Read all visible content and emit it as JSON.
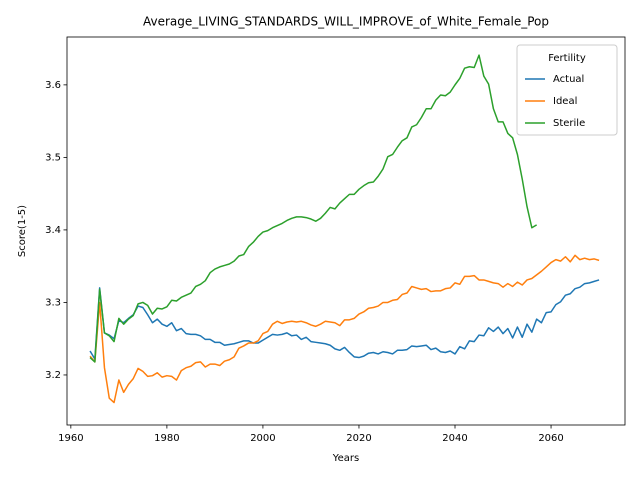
{
  "chart_data": {
    "type": "line",
    "title": "Average_LIVING_STANDARDS_WILL_IMPROVE_of_White_Female_Pop",
    "xlabel": "Years",
    "ylabel": "Score(1-5)",
    "legend_title": "Fertility",
    "legend_position": "upper right",
    "xlim": [
      1959.2,
      2075.4
    ],
    "xticks": [
      1960,
      1980,
      2000,
      2020,
      2040,
      2060
    ],
    "ylim": [
      3.131,
      3.666
    ],
    "yticks": [
      3.2,
      3.3,
      3.4,
      3.5,
      3.6
    ],
    "grid": false,
    "x": [
      1964,
      1965,
      1966,
      1967,
      1968,
      1969,
      1970,
      1971,
      1972,
      1973,
      1974,
      1975,
      1976,
      1977,
      1978,
      1979,
      1980,
      1981,
      1982,
      1983,
      1984,
      1985,
      1986,
      1987,
      1988,
      1989,
      1990,
      1991,
      1992,
      1993,
      1994,
      1995,
      1996,
      1997,
      1998,
      1999,
      2000,
      2001,
      2002,
      2003,
      2004,
      2005,
      2006,
      2007,
      2008,
      2009,
      2010,
      2011,
      2012,
      2013,
      2014,
      2015,
      2016,
      2017,
      2018,
      2019,
      2020,
      2021,
      2022,
      2023,
      2024,
      2025,
      2026,
      2027,
      2028,
      2029,
      2030,
      2031,
      2032,
      2033,
      2034,
      2035,
      2036,
      2037,
      2038,
      2039,
      2040,
      2041,
      2042,
      2043,
      2044,
      2045,
      2046,
      2047,
      2048,
      2049,
      2050,
      2051,
      2052,
      2053,
      2054,
      2055,
      2056,
      2057,
      2058,
      2059,
      2060,
      2061,
      2062,
      2063,
      2064,
      2065,
      2066,
      2067,
      2068,
      2069,
      2070
    ],
    "series": [
      {
        "name": "Actual",
        "color": "#1f77b4",
        "values": [
          3.233,
          3.222,
          3.32,
          3.258,
          3.255,
          3.25,
          3.275,
          3.272,
          3.278,
          3.283,
          3.295,
          3.293,
          3.283,
          3.272,
          3.277,
          3.27,
          3.267,
          3.272,
          3.261,
          3.264,
          3.257,
          3.256,
          3.256,
          3.254,
          3.249,
          3.249,
          3.245,
          3.245,
          3.241,
          3.242,
          3.243,
          3.245,
          3.247,
          3.247,
          3.244,
          3.244,
          3.248,
          3.252,
          3.256,
          3.255,
          3.256,
          3.258,
          3.254,
          3.255,
          3.249,
          3.252,
          3.246,
          3.245,
          3.244,
          3.243,
          3.241,
          3.236,
          3.234,
          3.238,
          3.231,
          3.225,
          3.224,
          3.226,
          3.23,
          3.231,
          3.229,
          3.232,
          3.231,
          3.229,
          3.234,
          3.234,
          3.235,
          3.24,
          3.239,
          3.24,
          3.241,
          3.235,
          3.237,
          3.232,
          3.231,
          3.233,
          3.229,
          3.239,
          3.236,
          3.247,
          3.246,
          3.255,
          3.254,
          3.265,
          3.26,
          3.266,
          3.257,
          3.264,
          3.251,
          3.266,
          3.252,
          3.27,
          3.259,
          3.277,
          3.272,
          3.286,
          3.287,
          3.297,
          3.301,
          3.31,
          3.312,
          3.319,
          3.321,
          3.326,
          3.327,
          3.329,
          3.331
        ]
      },
      {
        "name": "Ideal",
        "color": "#ff7f0e",
        "values": [
          3.226,
          3.218,
          3.3,
          3.21,
          3.168,
          3.162,
          3.193,
          3.176,
          3.187,
          3.195,
          3.209,
          3.205,
          3.198,
          3.199,
          3.203,
          3.197,
          3.199,
          3.198,
          3.193,
          3.206,
          3.21,
          3.212,
          3.217,
          3.218,
          3.211,
          3.215,
          3.215,
          3.213,
          3.219,
          3.221,
          3.225,
          3.237,
          3.24,
          3.244,
          3.244,
          3.247,
          3.257,
          3.26,
          3.27,
          3.274,
          3.271,
          3.273,
          3.274,
          3.273,
          3.274,
          3.272,
          3.269,
          3.267,
          3.27,
          3.274,
          3.273,
          3.272,
          3.268,
          3.276,
          3.276,
          3.278,
          3.284,
          3.287,
          3.292,
          3.293,
          3.295,
          3.3,
          3.3,
          3.303,
          3.304,
          3.311,
          3.313,
          3.322,
          3.32,
          3.318,
          3.319,
          3.315,
          3.316,
          3.316,
          3.319,
          3.32,
          3.327,
          3.325,
          3.336,
          3.336,
          3.337,
          3.331,
          3.331,
          3.329,
          3.327,
          3.326,
          3.321,
          3.326,
          3.322,
          3.328,
          3.324,
          3.331,
          3.333,
          3.338,
          3.343,
          3.349,
          3.355,
          3.359,
          3.357,
          3.363,
          3.356,
          3.365,
          3.359,
          3.361,
          3.359,
          3.36,
          3.358
        ]
      },
      {
        "name": "Sterile",
        "color": "#2ca02c",
        "values": [
          3.224,
          3.218,
          3.318,
          3.258,
          3.254,
          3.246,
          3.278,
          3.27,
          3.277,
          3.282,
          3.298,
          3.3,
          3.296,
          3.284,
          3.292,
          3.291,
          3.294,
          3.303,
          3.302,
          3.307,
          3.31,
          3.313,
          3.322,
          3.325,
          3.33,
          3.341,
          3.346,
          3.349,
          3.351,
          3.353,
          3.357,
          3.364,
          3.366,
          3.377,
          3.383,
          3.391,
          3.397,
          3.399,
          3.403,
          3.406,
          3.409,
          3.413,
          3.416,
          3.418,
          3.418,
          3.417,
          3.415,
          3.412,
          3.416,
          3.423,
          3.431,
          3.429,
          3.437,
          3.443,
          3.449,
          3.449,
          3.456,
          3.461,
          3.465,
          3.466,
          3.474,
          3.484,
          3.501,
          3.504,
          3.514,
          3.523,
          3.527,
          3.542,
          3.545,
          3.555,
          3.567,
          3.567,
          3.579,
          3.586,
          3.585,
          3.59,
          3.6,
          3.609,
          3.623,
          3.625,
          3.624,
          3.641,
          3.612,
          3.601,
          3.567,
          3.549,
          3.549,
          3.533,
          3.527,
          3.504,
          3.47,
          3.432,
          3.403,
          3.407,
          null,
          null,
          null,
          null,
          null,
          null,
          null,
          null,
          null,
          null,
          null,
          null,
          null
        ]
      }
    ]
  }
}
